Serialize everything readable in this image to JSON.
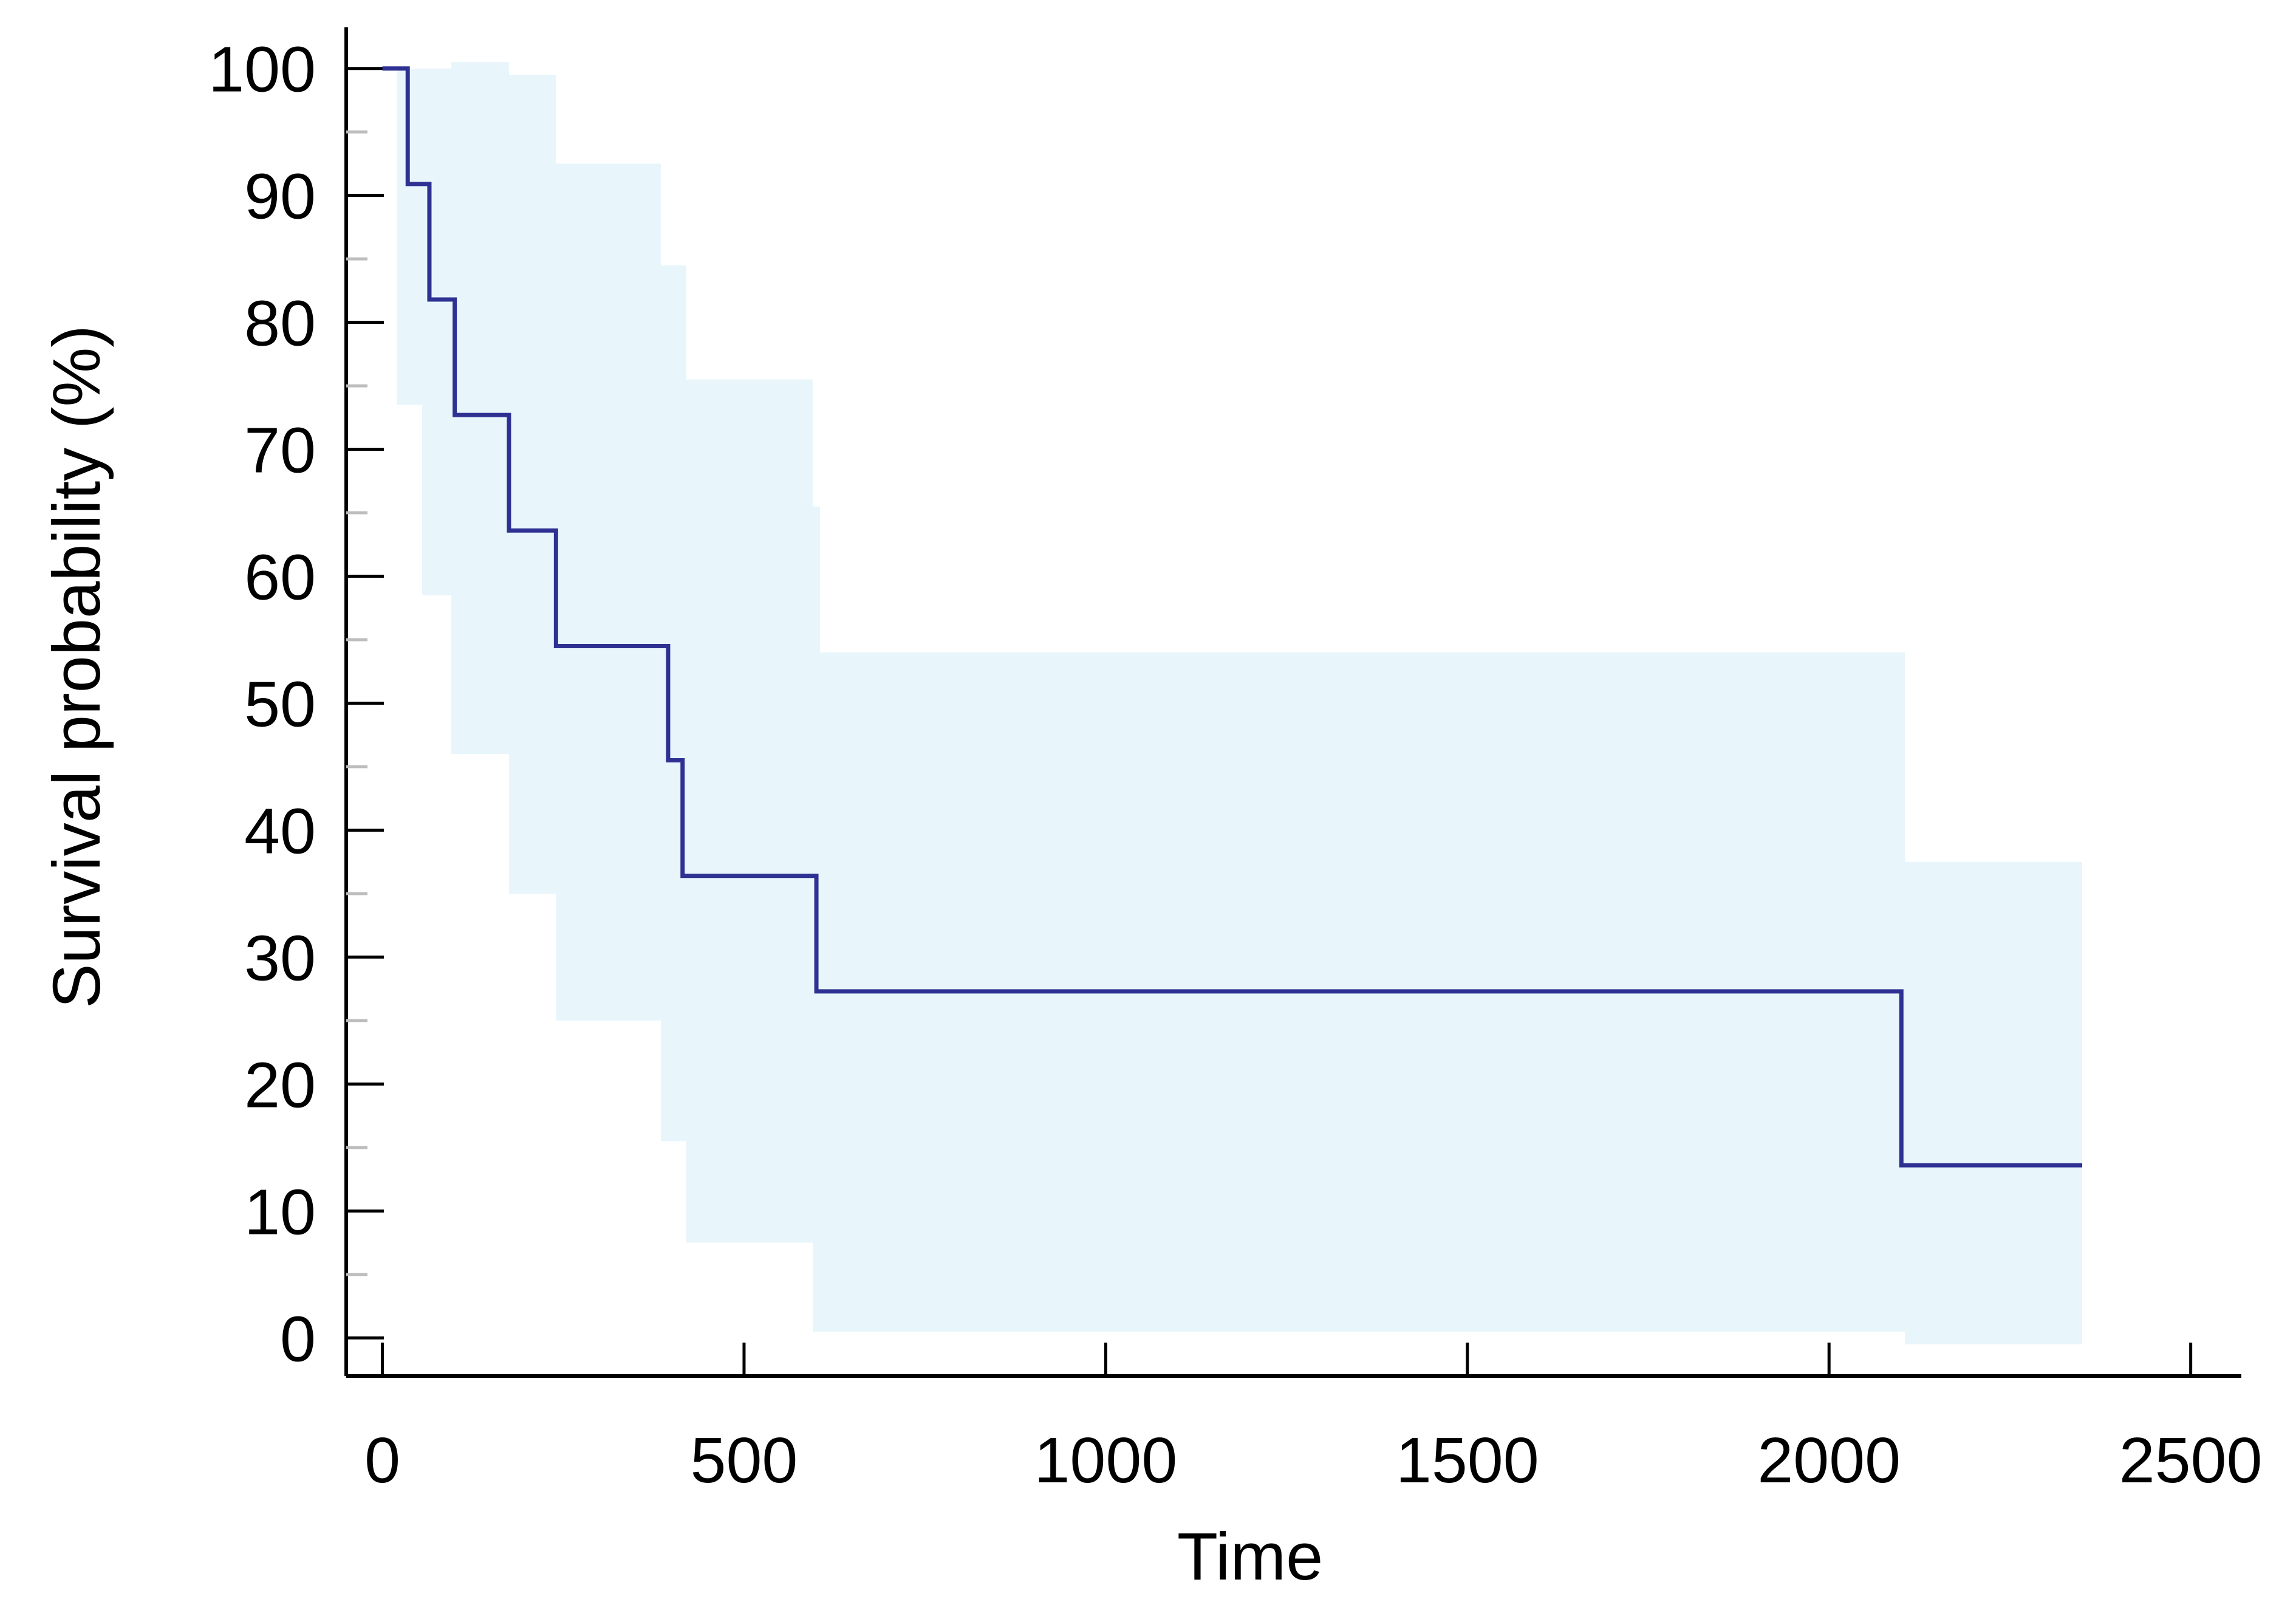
{
  "chart_data": {
    "type": "line",
    "subtype": "kaplan-meier",
    "title": "",
    "xlabel": "Time",
    "ylabel": "Survival probability (%)",
    "xlim": [
      -50,
      2570
    ],
    "ylim": [
      -3,
      103
    ],
    "x_ticks": [
      0,
      500,
      1000,
      1500,
      2000,
      2500
    ],
    "y_ticks": [
      0,
      10,
      20,
      30,
      40,
      50,
      60,
      70,
      80,
      90,
      100
    ],
    "y_minor_ticks": [
      5,
      15,
      25,
      35,
      45,
      55,
      65,
      75,
      85,
      95
    ],
    "grid": false,
    "legend": "none",
    "colors": {
      "line": "#2e3192",
      "band": "#e8f6fc",
      "axis": "#000000"
    },
    "series": [
      {
        "kind": "step",
        "x": [
          0,
          35,
          65,
          100,
          175,
          240,
          395,
          415,
          600,
          2100,
          2350
        ],
        "y": [
          100,
          90.9,
          81.8,
          72.7,
          63.6,
          54.5,
          45.5,
          36.4,
          27.3,
          13.6,
          13.6
        ]
      }
    ],
    "confidence_band": {
      "x": [
        0,
        20,
        55,
        95,
        175,
        240,
        385,
        405,
        420,
        595,
        605,
        2105,
        2350
      ],
      "lower": [
        100,
        73.5,
        58.5,
        46,
        35,
        25,
        15.5,
        15.5,
        7.5,
        0.5,
        0.5,
        -0.5,
        -0.5
      ],
      "upper": [
        100,
        100,
        100,
        100.5,
        99.5,
        92.5,
        84.5,
        84.5,
        75.5,
        65.5,
        54,
        37.5,
        37.5
      ]
    }
  }
}
